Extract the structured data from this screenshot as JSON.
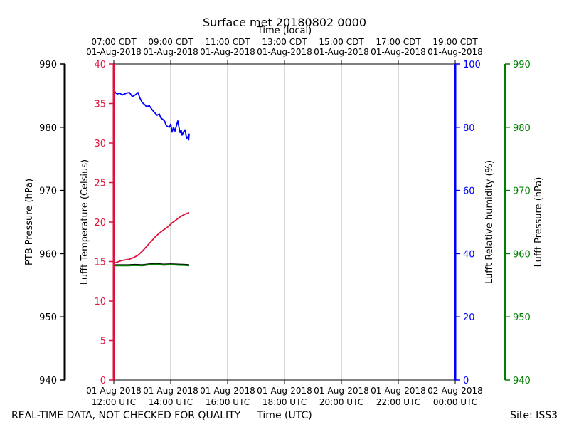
{
  "chart_data": {
    "type": "line",
    "title": "Surface met 20180802 0000",
    "top_axis_title": "Time (local)",
    "xlabel": "Time (UTC)",
    "x_range_hours_utc": [
      12,
      24
    ],
    "x_ticks_utc": [
      {
        "hour": 12,
        "date": "01-Aug-2018",
        "time": "12:00 UTC"
      },
      {
        "hour": 14,
        "date": "01-Aug-2018",
        "time": "14:00 UTC"
      },
      {
        "hour": 16,
        "date": "01-Aug-2018",
        "time": "16:00 UTC"
      },
      {
        "hour": 18,
        "date": "01-Aug-2018",
        "time": "18:00 UTC"
      },
      {
        "hour": 20,
        "date": "01-Aug-2018",
        "time": "20:00 UTC"
      },
      {
        "hour": 22,
        "date": "01-Aug-2018",
        "time": "22:00 UTC"
      },
      {
        "hour": 24,
        "date": "02-Aug-2018",
        "time": "00:00 UTC"
      }
    ],
    "x_ticks_local": [
      {
        "hour": 12,
        "time": "07:00 CDT",
        "date": "01-Aug-2018"
      },
      {
        "hour": 14,
        "time": "09:00 CDT",
        "date": "01-Aug-2018"
      },
      {
        "hour": 16,
        "time": "11:00 CDT",
        "date": "01-Aug-2018"
      },
      {
        "hour": 18,
        "time": "13:00 CDT",
        "date": "01-Aug-2018"
      },
      {
        "hour": 20,
        "time": "15:00 CDT",
        "date": "01-Aug-2018"
      },
      {
        "hour": 22,
        "time": "17:00 CDT",
        "date": "01-Aug-2018"
      },
      {
        "hour": 24,
        "time": "19:00 CDT",
        "date": "01-Aug-2018"
      }
    ],
    "axes": {
      "ptb_pressure": {
        "label": "PTB Pressure (hPa)",
        "range": [
          940,
          990
        ],
        "ticks": [
          940,
          950,
          960,
          970,
          980,
          990
        ],
        "color": "#000000"
      },
      "temperature": {
        "label": "Lufft Temperature (Celsius)",
        "range": [
          0,
          40
        ],
        "ticks": [
          0,
          5,
          10,
          15,
          20,
          25,
          30,
          35,
          40
        ],
        "color": "#dc143c"
      },
      "humidity": {
        "label": "Lufft Relative humidity (%)",
        "range": [
          0,
          100
        ],
        "ticks": [
          0,
          20,
          40,
          60,
          80,
          100
        ],
        "color": "#0000ff"
      },
      "lufft_pressure": {
        "label": "Lufft Pressure (hPa)",
        "range": [
          940,
          990
        ],
        "ticks": [
          940,
          950,
          960,
          970,
          980,
          990
        ],
        "color": "#008000"
      }
    },
    "series": [
      {
        "name": "Lufft Relative humidity",
        "axis": "humidity",
        "color": "#0000ff",
        "x": [
          12.0,
          12.05,
          12.12,
          12.2,
          12.3,
          12.45,
          12.55,
          12.65,
          12.75,
          12.85,
          12.92,
          13.0,
          13.08,
          13.15,
          13.25,
          13.35,
          13.45,
          13.52,
          13.6,
          13.65,
          13.72,
          13.78,
          13.85,
          13.9,
          13.95,
          14.0,
          14.05,
          14.1,
          14.15,
          14.2,
          14.25,
          14.3,
          14.33,
          14.37,
          14.4,
          14.45,
          14.5,
          14.53,
          14.56,
          14.6,
          14.63,
          14.65
        ],
        "values": [
          92,
          91,
          90.5,
          90.8,
          90.2,
          90.8,
          91,
          89.7,
          90.2,
          91,
          89.2,
          87.8,
          87.2,
          86.5,
          86.8,
          85.5,
          84.5,
          83.8,
          84.2,
          83,
          82.5,
          82,
          80.5,
          80.2,
          80,
          81,
          78.5,
          80,
          78.8,
          80.5,
          82,
          79.5,
          78.3,
          79,
          77.5,
          78.5,
          79.2,
          78,
          76.5,
          77,
          76,
          78
        ]
      },
      {
        "name": "Lufft Temperature",
        "axis": "temperature",
        "color": "#dc143c",
        "x": [
          12.0,
          12.1,
          12.25,
          12.4,
          12.55,
          12.7,
          12.85,
          13.0,
          13.15,
          13.3,
          13.45,
          13.6,
          13.75,
          13.9,
          14.05,
          14.2,
          14.35,
          14.5,
          14.65
        ],
        "values": [
          14.8,
          14.9,
          15.1,
          15.2,
          15.3,
          15.5,
          15.8,
          16.3,
          16.9,
          17.5,
          18.1,
          18.6,
          19.0,
          19.4,
          19.9,
          20.3,
          20.7,
          21.0,
          21.2
        ]
      },
      {
        "name": "PTB Pressure",
        "axis": "ptb_pressure",
        "color": "#000000",
        "x": [
          12.0,
          12.25,
          12.5,
          12.75,
          13.0,
          13.25,
          13.5,
          13.75,
          14.0,
          14.25,
          14.5,
          14.65
        ],
        "values": [
          958.2,
          958.2,
          958.2,
          958.25,
          958.2,
          958.35,
          958.4,
          958.3,
          958.35,
          958.3,
          958.25,
          958.2
        ]
      },
      {
        "name": "Lufft Pressure",
        "axis": "lufft_pressure",
        "color": "#008000",
        "x": [
          12.0,
          12.25,
          12.5,
          12.75,
          13.0,
          13.25,
          13.5,
          13.75,
          14.0,
          14.25,
          14.5,
          14.65
        ],
        "values": [
          958.1,
          958.1,
          958.1,
          958.15,
          958.1,
          958.25,
          958.3,
          958.2,
          958.25,
          958.2,
          958.15,
          958.1
        ]
      }
    ],
    "grid": "vertical"
  },
  "footer": {
    "left": "REAL-TIME DATA, NOT CHECKED FOR QUALITY",
    "center": "Time (UTC)",
    "right": "Site: ISS3"
  }
}
